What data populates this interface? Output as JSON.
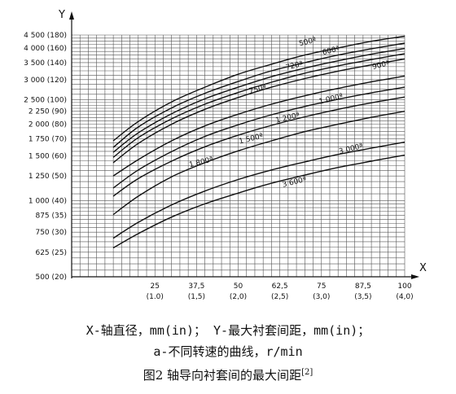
{
  "caption": {
    "line1": "X-轴直径，mm(in)；  Y-最大衬套间距，mm(in)；",
    "line2": "a-不同转速的曲线，r/min",
    "figure": "图2  轴导向衬套间的最大间距",
    "ref": "[2]"
  },
  "chart_data": {
    "type": "line",
    "xlabel": "X",
    "ylabel": "Y",
    "xlim": [
      0,
      100
    ],
    "ylim": [
      500,
      4500
    ],
    "y_scale": "log",
    "grid": true,
    "x_ticks": [
      {
        "value": 25,
        "label": "25",
        "sub": "(1.0)"
      },
      {
        "value": 37.5,
        "label": "37,5",
        "sub": "(1,5)"
      },
      {
        "value": 50,
        "label": "50",
        "sub": "(2,0)"
      },
      {
        "value": 62.5,
        "label": "62,5",
        "sub": "(2,5)"
      },
      {
        "value": 75,
        "label": "75",
        "sub": "(3,0)"
      },
      {
        "value": 87.5,
        "label": "87,5",
        "sub": "(3,5)"
      },
      {
        "value": 100,
        "label": "100",
        "sub": "(4,0)"
      }
    ],
    "y_ticks": [
      {
        "value": 4500,
        "label": "4 500 (180)"
      },
      {
        "value": 4000,
        "label": "4 000 (160)"
      },
      {
        "value": 3500,
        "label": "3 500 (140)"
      },
      {
        "value": 3000,
        "label": "3 000 (120)"
      },
      {
        "value": 2500,
        "label": "2 500 (100)"
      },
      {
        "value": 2250,
        "label": "2 250 (90)"
      },
      {
        "value": 2000,
        "label": "2 000 (80)"
      },
      {
        "value": 1750,
        "label": "1 750 (70)"
      },
      {
        "value": 1500,
        "label": "1 500 (60)"
      },
      {
        "value": 1250,
        "label": "1 250 (50)"
      },
      {
        "value": 1000,
        "label": "1 000 (40)"
      },
      {
        "value": 875,
        "label": "875 (35)"
      },
      {
        "value": 750,
        "label": "750 (30)"
      },
      {
        "value": 625,
        "label": "625 (25)"
      },
      {
        "value": 500,
        "label": "500 (20)"
      }
    ],
    "x": [
      12.5,
      20,
      30,
      40,
      50,
      60,
      70,
      80,
      90,
      100
    ],
    "series": [
      {
        "name": "500ª",
        "label_at": [
          71,
          4150
        ],
        "values": [
          1720,
          2050,
          2450,
          2800,
          3150,
          3450,
          3750,
          4000,
          4250,
          4450
        ]
      },
      {
        "name": "600ª",
        "label_at": [
          78,
          3830
        ],
        "values": [
          1620,
          1950,
          2320,
          2650,
          2950,
          3250,
          3500,
          3750,
          3970,
          4180
        ]
      },
      {
        "name": "720ª",
        "label_at": [
          67,
          3340
        ],
        "values": [
          1550,
          1850,
          2200,
          2520,
          2800,
          3080,
          3330,
          3560,
          3780,
          3980
        ]
      },
      {
        "name": "750ª",
        "label_at": [
          56,
          2700
        ],
        "values": [
          1480,
          1770,
          2100,
          2400,
          2670,
          2930,
          3180,
          3400,
          3600,
          3800
        ]
      },
      {
        "name": "900ª",
        "label_at": [
          93,
          3360
        ],
        "values": [
          1410,
          1680,
          2000,
          2290,
          2550,
          2800,
          3030,
          3240,
          3430,
          3620
        ]
      },
      {
        "name": "1 000ª",
        "label_at": [
          78,
          2470
        ],
        "values": [
          1250,
          1450,
          1720,
          1970,
          2190,
          2400,
          2590,
          2770,
          2940,
          3100
        ]
      },
      {
        "name": "1 200ª",
        "label_at": [
          65,
          2080
        ],
        "values": [
          1120,
          1320,
          1560,
          1790,
          1990,
          2180,
          2350,
          2510,
          2660,
          2800
        ]
      },
      {
        "name": "1 500ª",
        "label_at": [
          54,
          1720
        ],
        "values": [
          1040,
          1220,
          1430,
          1630,
          1810,
          1980,
          2140,
          2290,
          2430,
          2560
        ]
      },
      {
        "name": "1 800ª",
        "label_at": [
          39,
          1390
        ],
        "values": [
          880,
          1040,
          1240,
          1410,
          1570,
          1720,
          1870,
          2000,
          2130,
          2250
        ]
      },
      {
        "name": "3 000ª",
        "label_at": [
          84,
          1570
        ],
        "values": [
          710,
          820,
          960,
          1090,
          1210,
          1320,
          1420,
          1520,
          1610,
          1700
        ]
      },
      {
        "name": "3 600ª",
        "label_at": [
          67,
          1160
        ],
        "values": [
          650,
          740,
          860,
          970,
          1070,
          1170,
          1260,
          1350,
          1430,
          1510
        ]
      }
    ]
  }
}
